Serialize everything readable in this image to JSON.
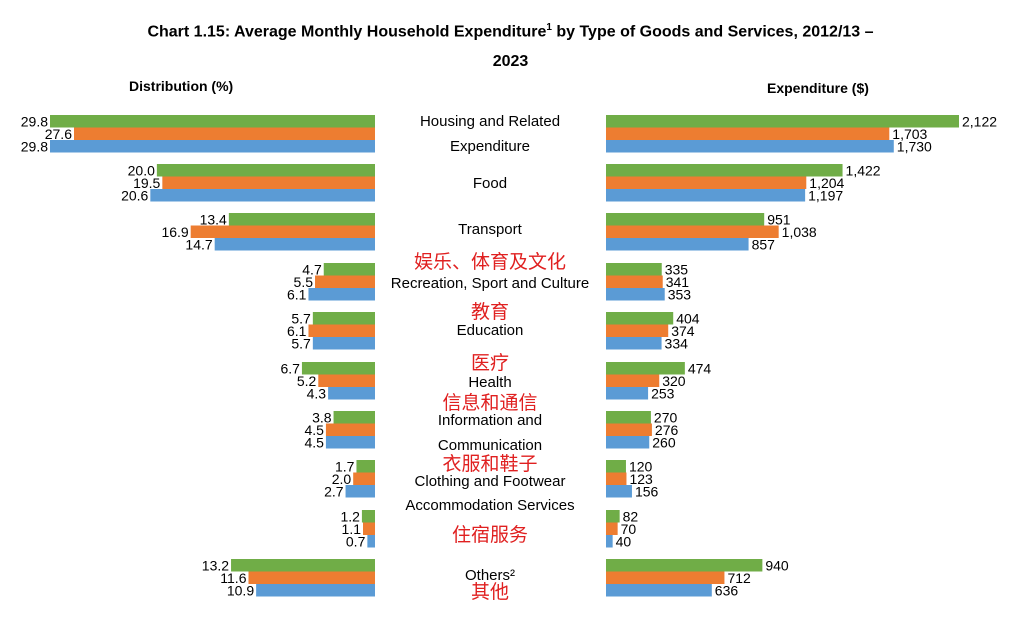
{
  "title_line1": "Chart 1.15: Average Monthly Household Expenditure",
  "title_sup": "1",
  "title_rest": " by Type of Goods and Services, 2012/13 –",
  "title_line2": "2023",
  "left_heading": "Distribution (%)",
  "right_heading": "Expenditure ($)",
  "colors": {
    "series_1": "#70ad47",
    "series_2": "#ed7d31",
    "series_3": "#5b9bd5"
  },
  "chart_data": [
    {
      "type": "bar",
      "orientation": "horizontal",
      "direction": "leftward",
      "title": "Distribution (%)",
      "categories": [
        "Housing and Related Expenditure",
        "Food",
        "Transport",
        "Recreation, Sport and Culture",
        "Education",
        "Health",
        "Information and Communication",
        "Clothing and Footwear",
        "Accommodation Services",
        "Others²"
      ],
      "series": [
        {
          "values": [
            29.8,
            20.0,
            13.4,
            4.7,
            5.7,
            6.7,
            3.8,
            1.7,
            1.2,
            13.2
          ],
          "labels": [
            "29.8",
            "20.0",
            "13.4",
            "4.7",
            "5.7",
            "6.7",
            "3.8",
            "1.7",
            "1.2",
            "13.2"
          ]
        },
        {
          "values": [
            27.6,
            19.5,
            16.9,
            5.5,
            6.1,
            5.2,
            4.5,
            2.0,
            1.1,
            11.6
          ],
          "labels": [
            "27.6",
            "19.5",
            "16.9",
            "5.5",
            "6.1",
            "5.2",
            "4.5",
            "2.0",
            "1.1",
            "11.6"
          ]
        },
        {
          "values": [
            29.8,
            20.6,
            14.7,
            6.1,
            5.7,
            4.3,
            4.5,
            2.7,
            0.7,
            10.9
          ],
          "labels": [
            "29.8",
            "20.6",
            "14.7",
            "6.1",
            "5.7",
            "4.3",
            "4.5",
            "2.7",
            "0.7",
            "10.9"
          ]
        }
      ],
      "grid": false,
      "legend": "none"
    },
    {
      "type": "bar",
      "orientation": "horizontal",
      "title": "Expenditure ($)",
      "categories": [
        "Housing and Related Expenditure",
        "Food",
        "Transport",
        "Recreation, Sport and Culture",
        "Education",
        "Health",
        "Information and Communication",
        "Clothing and Footwear",
        "Accommodation Services",
        "Others²"
      ],
      "series": [
        {
          "values": [
            2122,
            1422,
            951,
            335,
            404,
            474,
            270,
            120,
            82,
            940
          ],
          "labels": [
            "2,122",
            "1,422",
            "951",
            "335",
            "404",
            "474",
            "270",
            "120",
            "82",
            "940"
          ]
        },
        {
          "values": [
            1703,
            1204,
            1038,
            341,
            374,
            320,
            276,
            123,
            70,
            712
          ],
          "labels": [
            "1,703",
            "1,204",
            "1,038",
            "341",
            "374",
            "320",
            "276",
            "123",
            "70",
            "712"
          ]
        },
        {
          "values": [
            1730,
            1197,
            857,
            353,
            334,
            253,
            260,
            156,
            40,
            636
          ],
          "labels": [
            "1,730",
            "1,197",
            "857",
            "353",
            "334",
            "253",
            "260",
            "156",
            "40",
            "636"
          ]
        }
      ],
      "grid": false,
      "legend": "none"
    }
  ],
  "category_label_lines": [
    [
      "Housing and Related",
      "Expenditure"
    ],
    [
      "Food"
    ],
    [
      "Transport"
    ],
    [
      "Recreation, Sport and Culture"
    ],
    [
      "Education"
    ],
    [
      "Health"
    ],
    [
      "Information and",
      "Communication"
    ],
    [
      "Clothing and Footwear"
    ],
    [
      "Accommodation Services"
    ],
    [
      "Others²"
    ]
  ],
  "chinese_labels": [
    "娱乐、体育及文化",
    "教育",
    "医疗",
    "信息和通信",
    "衣服和鞋子",
    "住宿服务",
    "其他"
  ]
}
